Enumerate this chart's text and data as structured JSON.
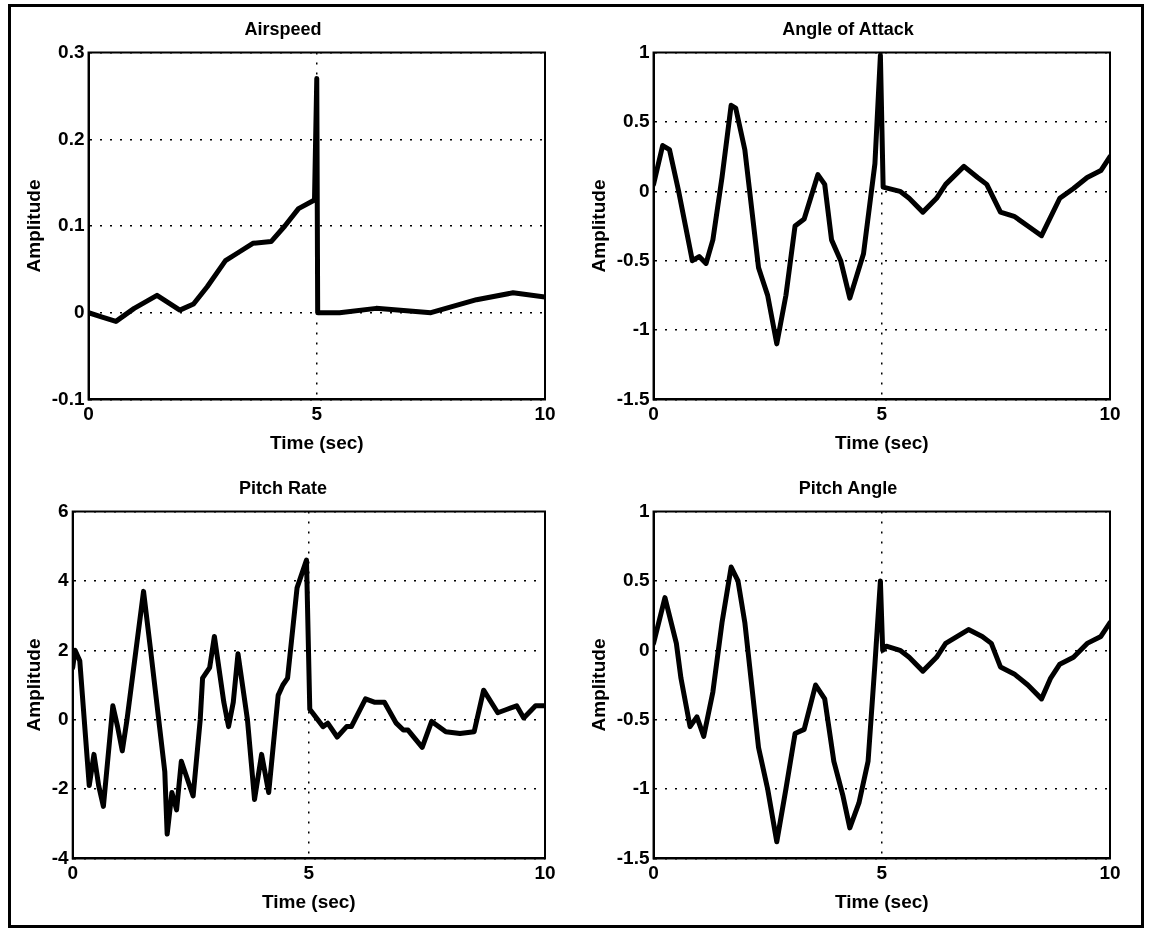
{
  "chart_data": [
    {
      "type": "line",
      "title": "Airspeed",
      "xlabel": "Time (sec)",
      "ylabel": "Amplitude",
      "xlim": [
        0,
        10
      ],
      "xticks": [
        0,
        5,
        10
      ],
      "ylim": [
        -0.1,
        0.3
      ],
      "yticks": [
        -0.1,
        0,
        0.1,
        0.2,
        0.3
      ],
      "grid": true,
      "legend": false,
      "series": [
        {
          "color": "#000000",
          "x": [
            0,
            0.3,
            0.6,
            1.0,
            1.5,
            2.0,
            2.3,
            2.6,
            3.0,
            3.3,
            3.6,
            4.0,
            4.3,
            4.6,
            4.95,
            5.0,
            5.02,
            5.5,
            6.3,
            7.5,
            8.5,
            9.3,
            10
          ],
          "values": [
            0,
            -0.005,
            -0.01,
            0.005,
            0.02,
            0.003,
            0.01,
            0.03,
            0.06,
            0.07,
            0.08,
            0.082,
            0.1,
            0.12,
            0.13,
            0.27,
            0.0,
            0.0,
            0.005,
            0.0,
            0.015,
            0.023,
            0.018
          ]
        }
      ]
    },
    {
      "type": "line",
      "title": "Angle of Attack",
      "xlabel": "Time (sec)",
      "ylabel": "Amplitude",
      "xlim": [
        0,
        10
      ],
      "xticks": [
        0,
        5,
        10
      ],
      "ylim": [
        -1.5,
        1
      ],
      "yticks": [
        -1.5,
        -1,
        -0.5,
        0,
        0.5,
        1
      ],
      "grid": true,
      "legend": false,
      "series": [
        {
          "color": "#000000",
          "x": [
            0,
            0.2,
            0.35,
            0.55,
            0.7,
            0.85,
            1.0,
            1.15,
            1.3,
            1.5,
            1.7,
            1.8,
            2.0,
            2.3,
            2.5,
            2.7,
            2.9,
            3.1,
            3.3,
            3.6,
            3.75,
            3.9,
            4.1,
            4.3,
            4.6,
            4.85,
            4.97,
            5.03,
            5.4,
            5.6,
            5.9,
            6.2,
            6.4,
            6.8,
            7.1,
            7.3,
            7.6,
            7.9,
            8.2,
            8.5,
            8.9,
            9.2,
            9.5,
            9.8,
            10
          ],
          "values": [
            0.05,
            0.33,
            0.3,
            0.0,
            -0.25,
            -0.5,
            -0.47,
            -0.52,
            -0.35,
            0.1,
            0.62,
            0.6,
            0.3,
            -0.55,
            -0.75,
            -1.1,
            -0.75,
            -0.25,
            -0.2,
            0.12,
            0.05,
            -0.35,
            -0.5,
            -0.77,
            -0.45,
            0.2,
            0.98,
            0.03,
            0.0,
            -0.05,
            -0.15,
            -0.05,
            0.05,
            0.18,
            0.1,
            0.05,
            -0.15,
            -0.18,
            -0.25,
            -0.32,
            -0.05,
            0.02,
            0.1,
            0.15,
            0.25
          ]
        }
      ]
    },
    {
      "type": "line",
      "title": "Pitch Rate",
      "xlabel": "Time (sec)",
      "ylabel": "Amplitude",
      "xlim": [
        0,
        10
      ],
      "xticks": [
        0,
        5,
        10
      ],
      "ylim": [
        -4,
        6
      ],
      "yticks": [
        -4,
        -2,
        0,
        2,
        4,
        6
      ],
      "grid": true,
      "legend": false,
      "series": [
        {
          "color": "#000000",
          "x": [
            0,
            0.05,
            0.15,
            0.35,
            0.45,
            0.55,
            0.65,
            0.85,
            0.95,
            1.05,
            1.15,
            1.5,
            1.65,
            1.95,
            2.0,
            2.1,
            2.2,
            2.3,
            2.55,
            2.7,
            2.75,
            2.9,
            3.0,
            3.2,
            3.3,
            3.4,
            3.5,
            3.7,
            3.85,
            4.0,
            4.15,
            4.35,
            4.45,
            4.55,
            4.75,
            4.95,
            5.02,
            5.3,
            5.4,
            5.6,
            5.8,
            5.9,
            6.2,
            6.4,
            6.6,
            6.85,
            7.0,
            7.1,
            7.4,
            7.6,
            7.9,
            8.2,
            8.5,
            8.7,
            9.0,
            9.2,
            9.4,
            9.55,
            9.8,
            10
          ],
          "values": [
            1.5,
            2.0,
            1.7,
            -1.9,
            -1.0,
            -1.9,
            -2.5,
            0.4,
            -0.2,
            -0.9,
            0.0,
            3.7,
            2.0,
            -1.5,
            -3.3,
            -2.1,
            -2.6,
            -1.2,
            -2.2,
            0.0,
            1.2,
            1.5,
            2.4,
            0.5,
            -0.2,
            0.5,
            1.9,
            0.0,
            -2.3,
            -1.0,
            -2.1,
            0.7,
            1.0,
            1.2,
            3.8,
            4.6,
            0.3,
            -0.2,
            -0.1,
            -0.5,
            -0.2,
            -0.2,
            0.6,
            0.5,
            0.5,
            -0.1,
            -0.3,
            -0.3,
            -0.8,
            -0.05,
            -0.35,
            -0.4,
            -0.35,
            0.85,
            0.2,
            0.3,
            0.4,
            0.05,
            0.4,
            0.4
          ]
        }
      ]
    },
    {
      "type": "line",
      "title": "Pitch Angle",
      "xlabel": "Time (sec)",
      "ylabel": "Amplitude",
      "xlim": [
        0,
        10
      ],
      "xticks": [
        0,
        5,
        10
      ],
      "ylim": [
        -1.5,
        1
      ],
      "yticks": [
        -1.5,
        -1,
        -0.5,
        0,
        0.5,
        1
      ],
      "grid": true,
      "legend": false,
      "series": [
        {
          "color": "#000000",
          "x": [
            0,
            0.25,
            0.5,
            0.6,
            0.8,
            0.95,
            1.1,
            1.3,
            1.5,
            1.7,
            1.85,
            2.0,
            2.3,
            2.5,
            2.7,
            2.9,
            3.1,
            3.3,
            3.55,
            3.75,
            3.95,
            4.15,
            4.3,
            4.5,
            4.7,
            4.85,
            4.97,
            5.02,
            5.1,
            5.4,
            5.6,
            5.9,
            6.2,
            6.4,
            6.9,
            7.2,
            7.4,
            7.6,
            7.9,
            8.2,
            8.5,
            8.7,
            8.9,
            9.2,
            9.5,
            9.8,
            10
          ],
          "values": [
            0.05,
            0.38,
            0.05,
            -0.2,
            -0.55,
            -0.48,
            -0.62,
            -0.3,
            0.2,
            0.6,
            0.5,
            0.2,
            -0.7,
            -1.0,
            -1.38,
            -1.0,
            -0.6,
            -0.57,
            -0.25,
            -0.35,
            -0.8,
            -1.05,
            -1.28,
            -1.1,
            -0.8,
            -0.1,
            0.5,
            0.0,
            0.03,
            0.0,
            -0.05,
            -0.15,
            -0.05,
            0.05,
            0.15,
            0.1,
            0.05,
            -0.12,
            -0.17,
            -0.25,
            -0.35,
            -0.2,
            -0.1,
            -0.05,
            0.05,
            0.1,
            0.2
          ]
        }
      ]
    }
  ]
}
